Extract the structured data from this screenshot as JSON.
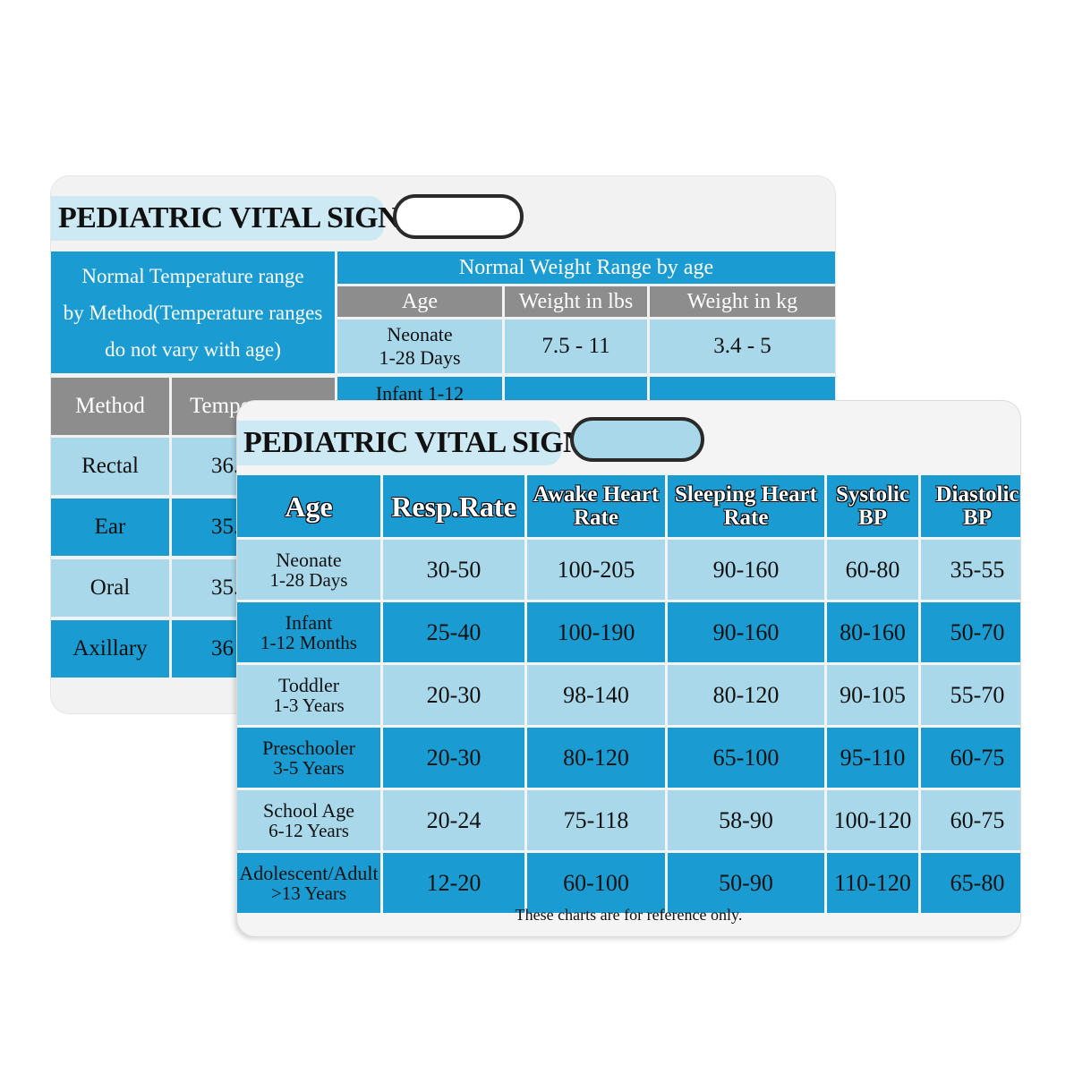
{
  "back_card": {
    "title": "PEDIATRIC VITAL SIGNS",
    "temperature_section": {
      "heading_lines": [
        "Normal Temperature range",
        "by Method(Temperature ranges",
        "do not vary with age)"
      ],
      "columns": [
        "Method",
        "Tempe"
      ],
      "rows": [
        {
          "method": "Rectal",
          "value": "36."
        },
        {
          "method": "Ear",
          "value": "35."
        },
        {
          "method": "Oral",
          "value": "35."
        },
        {
          "method": "Axillary",
          "value": "36"
        }
      ]
    },
    "weight_section": {
      "heading": "Normal Weight Range by age",
      "columns": [
        "Age",
        "Weight in lbs",
        "Weight in kg"
      ],
      "rows": [
        {
          "age_lines": [
            "Neonate",
            "1-28 Days"
          ],
          "lbs": "7.5 - 11",
          "kg": "3.4 - 5"
        },
        {
          "age_lines": [
            "Infant 1-12"
          ],
          "lbs": "",
          "kg": ""
        }
      ]
    }
  },
  "front_card": {
    "title": "PEDIATRIC VITAL SIGNS",
    "columns": [
      {
        "lines": [
          "Age"
        ]
      },
      {
        "lines": [
          "Resp.Rate"
        ]
      },
      {
        "lines": [
          "Awake Heart",
          "Rate"
        ]
      },
      {
        "lines": [
          "Sleeping Heart",
          "Rate"
        ]
      },
      {
        "lines": [
          "Systolic",
          "BP"
        ]
      },
      {
        "lines": [
          "Diastolic",
          "BP"
        ]
      }
    ],
    "rows": [
      {
        "age_lines": [
          "Neonate",
          "1-28 Days"
        ],
        "resp": "30-50",
        "awake": "100-205",
        "sleeping": "90-160",
        "systolic": "60-80",
        "diastolic": "35-55"
      },
      {
        "age_lines": [
          "Infant",
          "1-12 Months"
        ],
        "resp": "25-40",
        "awake": "100-190",
        "sleeping": "90-160",
        "systolic": "80-160",
        "diastolic": "50-70"
      },
      {
        "age_lines": [
          "Toddler",
          "1-3 Years"
        ],
        "resp": "20-30",
        "awake": "98-140",
        "sleeping": "80-120",
        "systolic": "90-105",
        "diastolic": "55-70"
      },
      {
        "age_lines": [
          "Preschooler",
          "3-5 Years"
        ],
        "resp": "20-30",
        "awake": "80-120",
        "sleeping": "65-100",
        "systolic": "95-110",
        "diastolic": "60-75"
      },
      {
        "age_lines": [
          "School Age",
          "6-12 Years"
        ],
        "resp": "20-24",
        "awake": "75-118",
        "sleeping": "58-90",
        "systolic": "100-120",
        "diastolic": "60-75"
      },
      {
        "age_lines": [
          "Adolescent/Adult",
          ">13 Years"
        ],
        "resp": "12-20",
        "awake": "60-100",
        "sleeping": "50-90",
        "systolic": "110-120",
        "diastolic": "65-80"
      }
    ],
    "footnote": "These charts are for reference only."
  },
  "colors": {
    "accent_blue": "#1a9bd1",
    "light_blue": "#a9d8ea",
    "header_gray": "#8d8d8d",
    "title_band": "#cde9f3"
  }
}
